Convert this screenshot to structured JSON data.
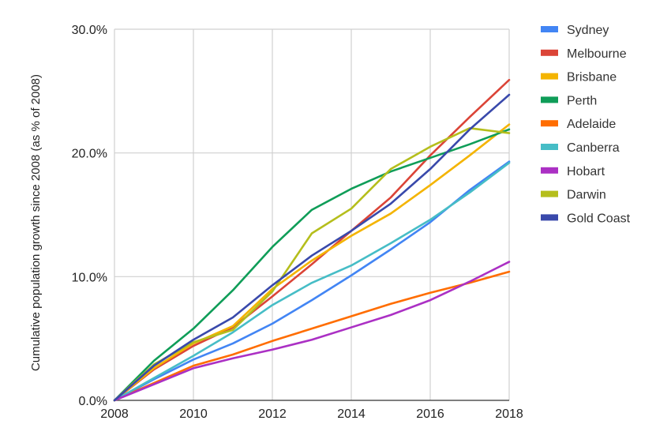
{
  "chart_data": {
    "type": "line",
    "title": "",
    "xlabel": "",
    "ylabel": "Cumulative population growth since 2008 (as % of 2008)",
    "x": [
      2008,
      2009,
      2010,
      2011,
      2012,
      2013,
      2014,
      2015,
      2016,
      2017,
      2018
    ],
    "xticks": [
      2008,
      2010,
      2012,
      2014,
      2016,
      2018
    ],
    "xtick_labels": [
      "2008",
      "2010",
      "2012",
      "2014",
      "2016",
      "2018"
    ],
    "yticks": [
      0,
      10,
      20,
      30
    ],
    "ytick_labels": [
      "0.0%",
      "10.0%",
      "20.0%",
      "30.0%"
    ],
    "xlim": [
      2008,
      2018
    ],
    "ylim": [
      0,
      30
    ],
    "grid": true,
    "legend_position": "right",
    "series": [
      {
        "name": "Sydney",
        "color": "#4285f4",
        "values": [
          0,
          1.7,
          3.3,
          4.6,
          6.2,
          8.1,
          10.1,
          12.2,
          14.4,
          17.0,
          19.3
        ]
      },
      {
        "name": "Melbourne",
        "color": "#db4437",
        "values": [
          0,
          2.5,
          4.4,
          5.9,
          8.4,
          11.0,
          13.7,
          16.4,
          19.8,
          22.9,
          25.9
        ]
      },
      {
        "name": "Brisbane",
        "color": "#f4b400",
        "values": [
          0,
          2.6,
          4.6,
          6.0,
          9.0,
          11.3,
          13.3,
          15.1,
          17.4,
          19.8,
          22.3
        ]
      },
      {
        "name": "Perth",
        "color": "#0f9d58",
        "values": [
          0,
          3.2,
          5.8,
          8.9,
          12.4,
          15.4,
          17.1,
          18.5,
          19.6,
          20.7,
          21.9
        ]
      },
      {
        "name": "Adelaide",
        "color": "#ff6d00",
        "values": [
          0,
          1.4,
          2.8,
          3.7,
          4.8,
          5.8,
          6.8,
          7.8,
          8.7,
          9.5,
          10.4
        ]
      },
      {
        "name": "Canberra",
        "color": "#46bdc6",
        "values": [
          0,
          1.8,
          3.6,
          5.5,
          7.7,
          9.5,
          10.9,
          12.7,
          14.6,
          16.8,
          19.2
        ]
      },
      {
        "name": "Hobart",
        "color": "#ab30c4",
        "values": [
          0,
          1.3,
          2.6,
          3.4,
          4.1,
          4.9,
          5.9,
          6.9,
          8.1,
          9.6,
          11.2
        ]
      },
      {
        "name": "Darwin",
        "color": "#b5be1c",
        "values": [
          0,
          2.9,
          4.7,
          5.7,
          8.8,
          13.5,
          15.5,
          18.7,
          20.5,
          22.0,
          21.6
        ]
      },
      {
        "name": "Gold Coast",
        "color": "#3949ab",
        "values": [
          0,
          2.8,
          4.9,
          6.7,
          9.3,
          11.7,
          13.7,
          15.9,
          18.7,
          21.9,
          24.7
        ]
      }
    ]
  }
}
